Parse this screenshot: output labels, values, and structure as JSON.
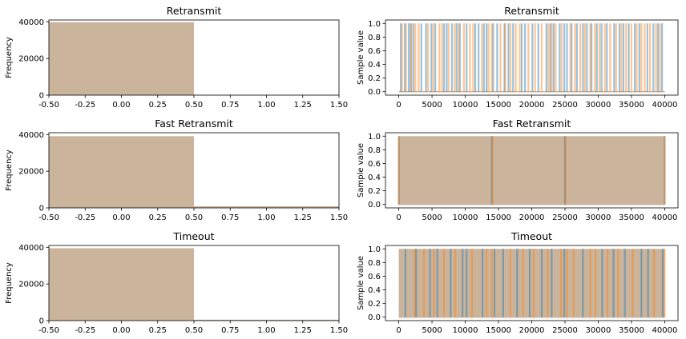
{
  "colors": {
    "blue": "#1f77b4",
    "orange": "#ff7f0e",
    "mixed_fill": "#cbb49c",
    "background": "#ffffff"
  },
  "chart_data": [
    {
      "type": "bar",
      "title": "Retransmit",
      "ylabel": "Frequency",
      "xlim": [
        -0.5,
        1.5
      ],
      "ylim": [
        0,
        41000
      ],
      "xticks": [
        "-0.50",
        "-0.25",
        "0.00",
        "0.25",
        "0.50",
        "0.75",
        "1.00",
        "1.25",
        "1.50"
      ],
      "yticks": [
        "0",
        "20000",
        "40000"
      ],
      "bins": [
        {
          "from": -0.5,
          "to": 0.5,
          "value": 39800
        },
        {
          "from": 0.5,
          "to": 1.5,
          "value": 200
        }
      ]
    },
    {
      "type": "line",
      "title": "Retransmit",
      "ylabel": "Sample value",
      "xlim": [
        -2000,
        42000
      ],
      "ylim": [
        -0.05,
        1.05
      ],
      "xticks": [
        "0",
        "5000",
        "10000",
        "15000",
        "20000",
        "25000",
        "30000",
        "35000",
        "40000"
      ],
      "yticks": [
        "0.0",
        "0.2",
        "0.4",
        "0.6",
        "0.8",
        "1.0"
      ],
      "baseline": 0,
      "series": [
        {
          "color": "blue",
          "spikes": [
            300,
            900,
            1500,
            1800,
            2200,
            3400,
            4100,
            4900,
            5500,
            6800,
            7200,
            8000,
            8700,
            9200,
            10200,
            11500,
            12000,
            12800,
            13200,
            14200,
            14800,
            15900,
            16500,
            17200,
            18500,
            19000,
            20100,
            21000,
            22200,
            22800,
            23300,
            24200,
            24900,
            25300,
            26000,
            26800,
            27700,
            28300,
            29000,
            29800,
            30500,
            31300,
            32400,
            33200,
            33800,
            34600,
            35500,
            36200,
            37400,
            38300,
            39000,
            39600
          ]
        },
        {
          "color": "orange",
          "spikes": [
            500,
            1100,
            1900,
            2500,
            3000,
            4400,
            5200,
            6100,
            6500,
            7500,
            8400,
            9000,
            9800,
            10700,
            11200,
            12500,
            13500,
            14000,
            15300,
            16000,
            16800,
            17600,
            18200,
            19500,
            20500,
            21500,
            22500,
            23000,
            23600,
            24500,
            25800,
            26500,
            27300,
            28000,
            28800,
            29500,
            30200,
            31000,
            31800,
            32700,
            33500,
            34200,
            35000,
            35800,
            36500,
            37000,
            37800,
            38700,
            39300
          ]
        }
      ]
    },
    {
      "type": "bar",
      "title": "Fast Retransmit",
      "ylabel": "Frequency",
      "xlim": [
        -0.5,
        1.5
      ],
      "ylim": [
        0,
        41000
      ],
      "xticks": [
        "-0.50",
        "-0.25",
        "0.00",
        "0.25",
        "0.50",
        "0.75",
        "1.00",
        "1.25",
        "1.50"
      ],
      "yticks": [
        "0",
        "20000",
        "40000"
      ],
      "bins": [
        {
          "from": -0.5,
          "to": 0.5,
          "value": 39100
        },
        {
          "from": 0.5,
          "to": 1.5,
          "value": 900
        }
      ]
    },
    {
      "type": "line",
      "title": "Fast Retransmit",
      "ylabel": "Sample value",
      "xlim": [
        -2000,
        42000
      ],
      "ylim": [
        -0.05,
        1.05
      ],
      "xticks": [
        "0",
        "5000",
        "10000",
        "15000",
        "20000",
        "25000",
        "30000",
        "35000",
        "40000"
      ],
      "yticks": [
        "0.0",
        "0.2",
        "0.4",
        "0.6",
        "0.8",
        "1.0"
      ],
      "baseline": 0,
      "fill": {
        "from": 0,
        "to": 40000
      },
      "series": [
        {
          "color": "blue",
          "spikes": [
            0,
            14000,
            25000,
            40000
          ]
        },
        {
          "color": "orange",
          "spikes": [
            0,
            14100,
            25100,
            40000
          ]
        }
      ]
    },
    {
      "type": "bar",
      "title": "Timeout",
      "ylabel": "Frequency",
      "xlim": [
        -0.5,
        1.5
      ],
      "ylim": [
        0,
        41000
      ],
      "xticks": [
        "-0.50",
        "-0.25",
        "0.00",
        "0.25",
        "0.50",
        "0.75",
        "1.00",
        "1.25",
        "1.50"
      ],
      "yticks": [
        "0",
        "20000",
        "40000"
      ],
      "bins": [
        {
          "from": -0.5,
          "to": 0.5,
          "value": 39500
        },
        {
          "from": 0.5,
          "to": 1.5,
          "value": 500
        }
      ]
    },
    {
      "type": "line",
      "title": "Timeout",
      "ylabel": "Sample value",
      "xlim": [
        -2000,
        42000
      ],
      "ylim": [
        -0.05,
        1.05
      ],
      "xticks": [
        "0",
        "5000",
        "10000",
        "15000",
        "20000",
        "25000",
        "30000",
        "35000",
        "40000"
      ],
      "yticks": [
        "0.0",
        "0.2",
        "0.4",
        "0.6",
        "0.8",
        "1.0"
      ],
      "baseline": 0,
      "fill": {
        "from": 0,
        "to": 40000
      },
      "series": [
        {
          "color": "blue",
          "spikes": [
            1000,
            2600,
            4700,
            5800,
            7800,
            9600,
            10200,
            12600,
            14400,
            15700,
            17800,
            19700,
            21500,
            23000,
            24900,
            27700,
            30600,
            32300,
            34000,
            36500,
            37500,
            39700
          ]
        },
        {
          "color": "orange",
          "spikes": [
            2400,
            3800,
            5300,
            6800,
            8500,
            11000,
            13200,
            14000,
            16800,
            18700,
            20300,
            22400,
            24400,
            25300,
            26300,
            28800,
            29600,
            31400,
            33000,
            35200,
            38400,
            40000
          ]
        }
      ]
    }
  ]
}
